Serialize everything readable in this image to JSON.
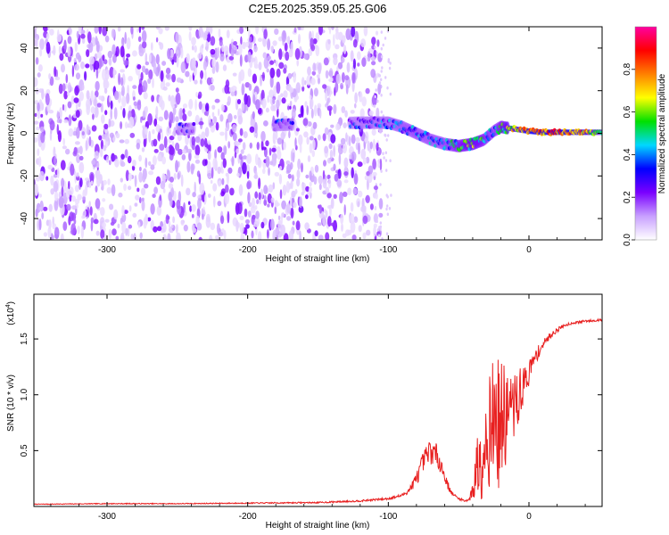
{
  "chart_data": [
    {
      "type": "heatmap",
      "title": "C2E5.2025.359.05.25.G06",
      "xlabel": "Height of straight line (km)",
      "ylabel": "Frequency (Hz)",
      "xlim": [
        -352,
        52
      ],
      "ylim": [
        -50,
        50
      ],
      "x_ticks": [
        -300,
        -200,
        -100,
        0
      ],
      "x_tick_labels": [
        "-300",
        "-200",
        "-100",
        "0"
      ],
      "y_ticks": [
        40,
        20,
        0,
        -20,
        -40
      ],
      "y_tick_labels": [
        "40",
        "20",
        "0",
        "-20",
        "-40"
      ],
      "colorbar": {
        "label": "Normalized spectral amplitude",
        "range": [
          0,
          1
        ],
        "ticks": [
          0,
          0.2,
          0.4,
          0.6,
          0.8
        ],
        "tick_labels": [
          "0.0",
          "0.2",
          "0.4",
          "0.6",
          "0.8"
        ],
        "colors": [
          "#ffffff",
          "#c8a0ff",
          "#7a00ff",
          "#0000ff",
          "#00d8ff",
          "#00e000",
          "#ffff00",
          "#ff8000",
          "#ff0000",
          "#ff00a0"
        ]
      },
      "ridge": {
        "x": [
          -245,
          -175,
          -120,
          -100,
          -90,
          -80,
          -70,
          -60,
          -50,
          -40,
          -32,
          -25,
          -20,
          -10,
          0,
          10,
          20,
          30,
          40,
          52
        ],
        "freq": [
          2,
          4,
          5,
          5,
          3,
          0,
          -3,
          -5,
          -6,
          -5,
          -3,
          1,
          3,
          2,
          1,
          0.5,
          0.5,
          0.5,
          0.5,
          0.5
        ],
        "amplitude": [
          0.35,
          0.4,
          0.4,
          0.45,
          0.48,
          0.5,
          0.48,
          0.5,
          0.6,
          0.7,
          0.6,
          0.5,
          0.62,
          0.8,
          0.9,
          0.9,
          0.92,
          0.9,
          0.85,
          0.55
        ]
      }
    },
    {
      "type": "line",
      "xlabel": "Height of straight line (km)",
      "ylabel": "SNR (10 * v/v)",
      "y_scale_label": "(x10",
      "y_scale_exponent": "4",
      "y_scale_suffix": ")",
      "xlim": [
        -352,
        52
      ],
      "ylim": [
        0,
        1.9
      ],
      "x_ticks": [
        -300,
        -200,
        -100,
        0
      ],
      "x_tick_labels": [
        "-300",
        "-200",
        "-100",
        "0"
      ],
      "y_ticks": [
        0.5,
        1.0,
        1.5
      ],
      "y_tick_labels": [
        "0.5",
        "1.0",
        "1.5"
      ],
      "line_color": "#e82020",
      "series": [
        {
          "name": "SNR",
          "x": [
            -352,
            -300,
            -250,
            -200,
            -150,
            -120,
            -100,
            -90,
            -85,
            -80,
            -75,
            -70,
            -65,
            -62,
            -58,
            -55,
            -50,
            -45,
            -42,
            -40,
            -38,
            -35,
            -30,
            -25,
            -20,
            -15,
            -10,
            -5,
            0,
            5,
            10,
            15,
            20,
            25,
            30,
            40,
            52
          ],
          "y": [
            0.02,
            0.025,
            0.025,
            0.03,
            0.035,
            0.05,
            0.07,
            0.1,
            0.15,
            0.25,
            0.4,
            0.5,
            0.45,
            0.35,
            0.2,
            0.12,
            0.07,
            0.05,
            0.07,
            0.15,
            0.3,
            0.45,
            0.62,
            0.8,
            0.7,
            0.85,
            0.9,
            1.05,
            1.2,
            1.35,
            1.45,
            1.53,
            1.58,
            1.62,
            1.64,
            1.66,
            1.67
          ],
          "noise_amplitude": [
            0.003,
            0.004,
            0.004,
            0.005,
            0.006,
            0.008,
            0.01,
            0.015,
            0.03,
            0.06,
            0.1,
            0.12,
            0.1,
            0.07,
            0.04,
            0.02,
            0.01,
            0.01,
            0.02,
            0.1,
            0.3,
            0.4,
            0.5,
            0.55,
            0.6,
            0.4,
            0.3,
            0.2,
            0.12,
            0.07,
            0.04,
            0.03,
            0.02,
            0.015,
            0.012,
            0.01,
            0.01
          ]
        }
      ]
    }
  ]
}
